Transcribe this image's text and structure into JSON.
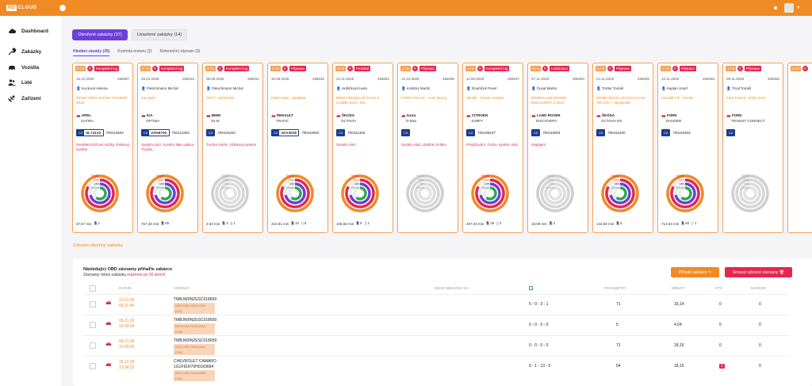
{
  "header": {
    "logo_badge": "RD",
    "logo_text": "CLOUD"
  },
  "sidebar": {
    "items": [
      {
        "label": "Dashboard",
        "icon": "cloud-icon"
      },
      {
        "label": "Zakázky",
        "icon": "wrench-icon"
      },
      {
        "label": "Vozidla",
        "icon": "car-icon"
      },
      {
        "label": "Lidé",
        "icon": "people-icon"
      },
      {
        "label": "Zařízení",
        "icon": "satellite-icon"
      }
    ]
  },
  "tabs": {
    "open": "Otevřené zakázky (37)",
    "closed": "Uzavřené zakázky (14)"
  },
  "subtabs": [
    "Hledání závady (35)",
    "Kontrola motoru (2)",
    "Referenční záznam (0)"
  ],
  "chart_legend": [
    "Stabil",
    "Max",
    "Idle",
    "Decel"
  ],
  "cards": [
    {
      "count": "2 / 6",
      "status": "Kompletní log",
      "date": "16.12.2025",
      "num": "255097",
      "person": "Kocková Helena",
      "product": "OP407 OPEL ZAFIRA TOURER 2018",
      "brand": "OPEL",
      "model": "ZAFIRA",
      "plate": "5L74122",
      "vin": "700110504",
      "desc": "Osvětlení klíčové složky, Palivový systém",
      "minutes": "57,57 min",
      "extra": "1",
      "grey": false
    },
    {
      "count": "2 / 6",
      "status": "Kompletní log",
      "date": "28.04.2025",
      "num": "255015",
      "person": "Fleischmann Michal",
      "product": "Kia ceed",
      "brand": "KIA",
      "model": "OPTIMA",
      "plate": "2SH8792",
      "vin": "700112304",
      "desc": "Systém sání, Systém tlaku paliva, Tvorba...",
      "minutes": "757,26 min",
      "extra": "55",
      "grey": false
    },
    {
      "count": "2 / 6",
      "status": "Kompletní log",
      "date": "05.09.2025",
      "num": "255031",
      "person": "Fleischmann Michal",
      "product": "TEST - DEVCOM",
      "brand": "BMW",
      "model": "X5 M",
      "plate": "",
      "vin": "700104204",
      "desc": "Tvorba směsi, Výfukový systém",
      "minutes": "4,63 min",
      "extra": "3",
      "extra2": "1",
      "grey": true
    },
    {
      "count": "1 / 6",
      "status": "Příprava",
      "date": "30.05.2025",
      "num": "255030",
      "person": "",
      "product": "Flash team - dodávka",
      "brand": "RENAULT",
      "model": "TRAFIC",
      "plate": "4SX3025",
      "vin": "700110504",
      "desc": "",
      "minutes": "410,91 min",
      "extra": "10",
      "extra2": "5",
      "grey": false
    },
    {
      "count": "6 / 6",
      "status": "Protokol",
      "date": "24.11.2025",
      "num": "255081",
      "person": "Hrdličková Iveta",
      "product": "DP507 ŠKODA OCTAVIA 3 COMBI 2014 - RS",
      "brand": "ŠKODA",
      "model": "OCTAVIA",
      "plate": "",
      "vin": "700111404",
      "desc": "Systém sání",
      "minutes": "105,58 min",
      "extra": "8",
      "extra2": "1",
      "grey": false
    },
    {
      "count": "1 / 6",
      "status": "Příprava",
      "date": "12.12.2025",
      "num": "255096",
      "person": "Králický Martin",
      "product": "FORD FOCUS - nové skvrny",
      "brand": "Isuzu",
      "model": "D-Max",
      "plate": "",
      "vin": "",
      "desc": "Systém sání, Zpětné zrcátko",
      "minutes": "",
      "extra": "",
      "grey": true
    },
    {
      "count": "2 / 6",
      "status": "Kompletní log",
      "date": "11.09.2025",
      "num": "255047",
      "person": "Roubíček Pavel",
      "product": "Vanilla - Citroen Jumper",
      "brand": "CITROEN",
      "model": "JUMPY",
      "plate": "",
      "vin": "700108107",
      "desc": "Přeplňování, Turbo, Systém sání",
      "minutes": "407,03 min",
      "extra": "29",
      "extra2": "2",
      "grey": false
    },
    {
      "count": "4 / 6",
      "status": "Lokalizace",
      "date": "27.11.2025",
      "num": "255084",
      "person": "Česal Martin",
      "product": "DP509 LAND ROVER DISCOVERY 4 2012",
      "brand": "LAND ROVER",
      "model": "DISCOVERY",
      "plate": "",
      "vin": "700110504",
      "desc": "Napájení",
      "minutes": "18,09 min",
      "extra": "2",
      "grey": true
    },
    {
      "count": "1 / 6",
      "status": "Příprava",
      "date": "24.11.2025",
      "num": "255080",
      "person": "Trotter Tomáš",
      "product": "DP508 ŠKODA OCTAVIA 3 RS TDI 2017 - spolujízda",
      "brand": "ŠKODA",
      "model": "OCTAVIA RS",
      "plate": "",
      "vin": "700110100",
      "desc": "",
      "minutes": "142,59 min",
      "extra": "5",
      "grey": false
    },
    {
      "count": "1 / 6",
      "status": "Příprava",
      "date": "10.11.2025",
      "num": "255068",
      "person": "Kaplan Josef",
      "product": "Karosář CZ - Kozlan",
      "brand": "FORD",
      "model": "RANGER",
      "plate": "",
      "vin": "700110403",
      "desc": "",
      "minutes": "714,83 min",
      "extra": "60",
      "extra2": "1",
      "grey": false
    },
    {
      "count": "1 / 6",
      "status": "Příprava",
      "date": "09.11.2025",
      "num": "255066",
      "person": "Trnal Tomáš",
      "product": "Ford Transit - tvrdý chod",
      "brand": "FORD",
      "model": "TRANSIT CONNECT",
      "plate": "",
      "vin": "",
      "desc": "",
      "minutes": "",
      "extra": "",
      "grey": true
    },
    {
      "count": "1 / 6",
      "status": "",
      "date": "",
      "num": "",
      "person": "",
      "product": "",
      "brand": "",
      "model": "",
      "plate": "",
      "vin": "",
      "desc": "",
      "minutes": "",
      "extra": "",
      "grey": true
    }
  ],
  "show_all": "Zobrazit všechny zakázky",
  "panel": {
    "title": "Následující OBD záznamy přiřaďte zakázce",
    "sub_prefix": "Záznamy mimo zakázku",
    "sub_red": "mažeme po 30 dnech",
    "assign_btn": "Přiřadit zakázce",
    "delete_btn": "Smazat vybrané záznamy",
    "columns": {
      "date": "DATUM",
      "vehicle": "VOZIDLO",
      "deleted": "BUDE SMAZÁNO ZA",
      "params": "PARAMETRY",
      "minutes": "MINUTY",
      "dtc": "DTC",
      "marker": "MARKER"
    },
    "rows": [
      {
        "date": "12.01.26",
        "time": "09:11:44",
        "vin": "TMBJW0NZESC018659",
        "vname": "",
        "tag1": "Petrol",
        "tag2": "DEVCOM-700112301 (131)",
        "params_codes": "5 - 0 - 3 - 1",
        "params": "71",
        "minutes": "33,14",
        "dtc": "0",
        "marker": "0"
      },
      {
        "date": "08.01.26",
        "time": "15:00:54",
        "vin": "TMBJW0NZESC018659",
        "vname": "",
        "tag1": "Petrol",
        "tag2": "DEVCOM-700112301 (128)",
        "params_codes": "0 - 0 - 0 - 0",
        "params": "5",
        "minutes": "4,64",
        "dtc": "0",
        "marker": "0"
      },
      {
        "date": "08.01.26",
        "time": "13:59:02",
        "vin": "TMBJW0NZESC018659",
        "vname": "",
        "tag1": "Petrol",
        "tag2": "DEVCOM-700112301 (131)",
        "params_codes": "0 - 0 - 0 - 0",
        "params": "71",
        "minutes": "18,15",
        "dtc": "0",
        "marker": "0"
      },
      {
        "date": "18.12.25",
        "time": "13:34:33",
        "vin": "1G1F91R70H0193684",
        "vname": "CHEVROLET CAMARO",
        "tag1": "Petrol",
        "tag2": "DEVCOM-700110403 (131)",
        "params_codes": "9 - 1 - 13 - 0",
        "params": "54",
        "minutes": "18,15",
        "dtc": "1",
        "marker": "0"
      }
    ]
  },
  "colors": {
    "accent": "#f08a24",
    "purple": "#6c3fd9",
    "red": "#e6264f",
    "green": "#2fa84f"
  }
}
